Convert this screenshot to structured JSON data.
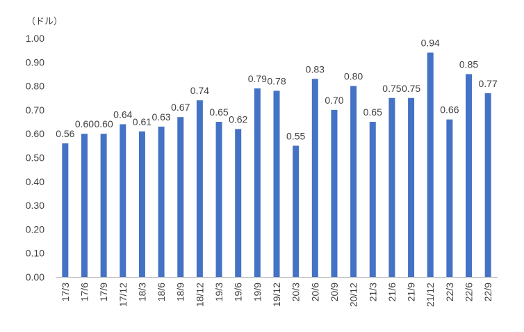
{
  "chart_data": {
    "type": "bar",
    "unit_label": "（ドル）",
    "categories": [
      "17/3",
      "17/6",
      "17/9",
      "17/12",
      "18/3",
      "18/6",
      "18/9",
      "18/12",
      "19/3",
      "19/6",
      "19/9",
      "19/12",
      "20/3",
      "20/6",
      "20/9",
      "20/12",
      "21/3",
      "21/6",
      "21/9",
      "21/12",
      "22/3",
      "22/6",
      "22/9"
    ],
    "values": [
      0.56,
      0.6,
      0.6,
      0.64,
      0.61,
      0.63,
      0.67,
      0.74,
      0.65,
      0.62,
      0.79,
      0.78,
      0.55,
      0.83,
      0.7,
      0.8,
      0.65,
      0.75,
      0.75,
      0.94,
      0.66,
      0.85,
      0.77
    ],
    "data_labels": [
      "0.56",
      "0.60",
      "0.60",
      "0.64",
      "0.61",
      "0.63",
      "0.67",
      "0.74",
      "0.65",
      "0.62",
      "0.79",
      "0.78",
      "0.55",
      "0.83",
      "0.70",
      "0.80",
      "0.65",
      "0.75",
      "0.75",
      "0.94",
      "0.66",
      "0.85",
      "0.77"
    ],
    "ylim": [
      0,
      1.0
    ],
    "yticks": [
      "0.00",
      "0.10",
      "0.20",
      "0.30",
      "0.40",
      "0.50",
      "0.60",
      "0.70",
      "0.80",
      "0.90",
      "1.00"
    ],
    "grid": false,
    "legend": "none",
    "bar_color": "#4472C4",
    "axis_color": "#BFBFBF"
  }
}
